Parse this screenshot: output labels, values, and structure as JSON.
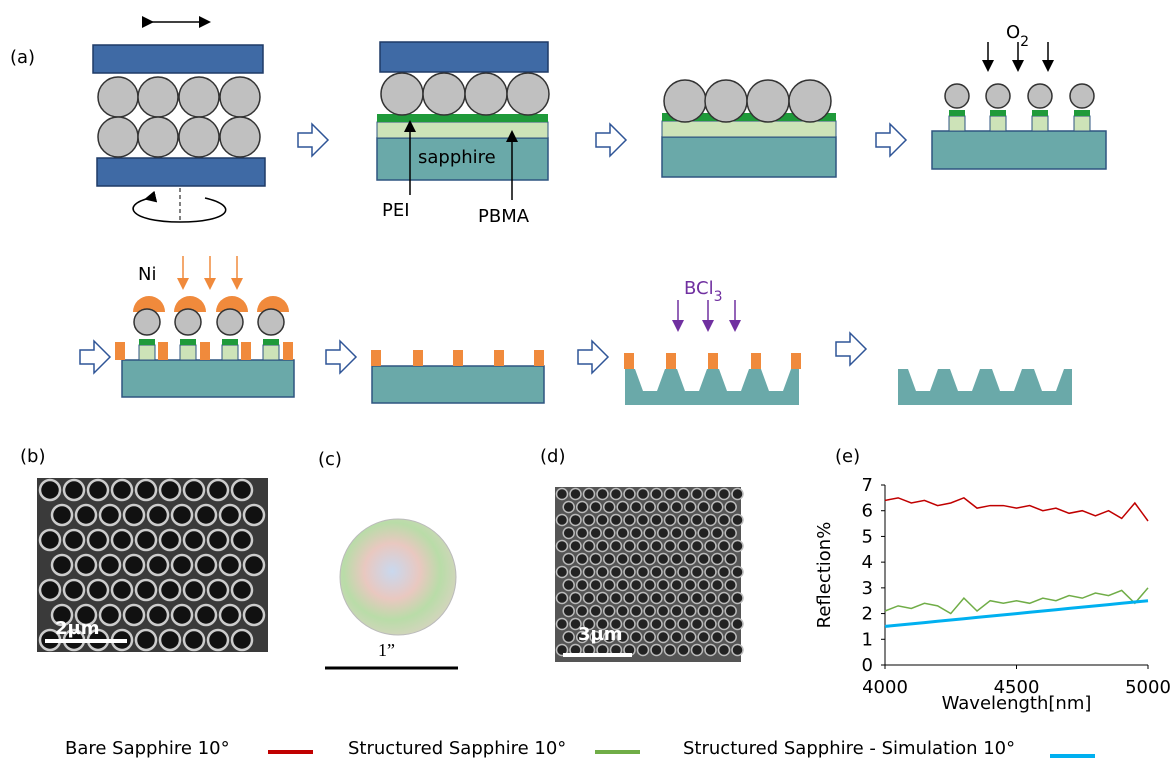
{
  "panels": {
    "a": "(a)",
    "b": "(b)",
    "c": "(c)",
    "d": "(d)",
    "e": "(e)"
  },
  "diagram": {
    "sapphire": "sapphire",
    "pei": "PEI",
    "pbma": "PBMA",
    "o": "O",
    "o_sub": "2",
    "ni": "Ni",
    "bcl": "BCl",
    "bcl_sub": "3"
  },
  "images": {
    "b_scale": "2µm",
    "c_scale": "1”",
    "d_scale": "3µm"
  },
  "chart_data": {
    "type": "line",
    "y_label": "Reflection%",
    "x_label": "Wavelength[nm]",
    "xlim": [
      4000,
      5000
    ],
    "xticks": [
      4000,
      4500,
      5000
    ],
    "ylim": [
      0,
      7
    ],
    "yticks": [
      0,
      1,
      2,
      3,
      4,
      5,
      6,
      7
    ],
    "x": [
      4000,
      4050,
      4100,
      4150,
      4200,
      4250,
      4300,
      4350,
      4400,
      4450,
      4500,
      4550,
      4600,
      4650,
      4700,
      4750,
      4800,
      4850,
      4900,
      4950,
      5000
    ],
    "series": [
      {
        "name": "Bare Sapphire 10°",
        "color": "#c00000",
        "values": [
          6.4,
          6.5,
          6.3,
          6.4,
          6.2,
          6.3,
          6.5,
          6.1,
          6.2,
          6.2,
          6.1,
          6.2,
          6.0,
          6.1,
          5.9,
          6.0,
          5.8,
          6.0,
          5.7,
          6.3,
          5.6
        ]
      },
      {
        "name": "Structured Sapphire 10°",
        "color": "#70ad47",
        "values": [
          2.1,
          2.3,
          2.2,
          2.4,
          2.3,
          2.0,
          2.6,
          2.1,
          2.5,
          2.4,
          2.5,
          2.4,
          2.6,
          2.5,
          2.7,
          2.6,
          2.8,
          2.7,
          2.9,
          2.4,
          3.0
        ]
      },
      {
        "name": "Structured Sapphire - Simulation 10°",
        "color": "#00b0f0",
        "values": [
          1.5,
          1.55,
          1.6,
          1.65,
          1.7,
          1.75,
          1.8,
          1.85,
          1.9,
          1.95,
          2.0,
          2.05,
          2.1,
          2.15,
          2.2,
          2.25,
          2.3,
          2.35,
          2.4,
          2.45,
          2.5
        ]
      }
    ]
  }
}
